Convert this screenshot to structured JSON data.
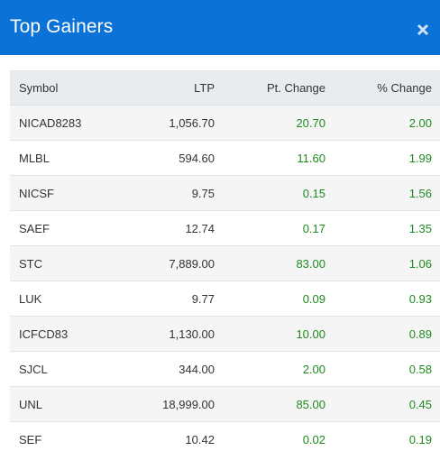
{
  "header": {
    "title": "Top Gainers",
    "close_icon": "close-icon"
  },
  "colors": {
    "header_bg": "#0b72d8",
    "positive": "#1e8a1e"
  },
  "table": {
    "columns": [
      "Symbol",
      "LTP",
      "Pt. Change",
      "% Change"
    ],
    "rows": [
      {
        "symbol": "NICAD8283",
        "ltp": "1,056.70",
        "pt_change": "20.70",
        "pct_change": "2.00"
      },
      {
        "symbol": "MLBL",
        "ltp": "594.60",
        "pt_change": "11.60",
        "pct_change": "1.99"
      },
      {
        "symbol": "NICSF",
        "ltp": "9.75",
        "pt_change": "0.15",
        "pct_change": "1.56"
      },
      {
        "symbol": "SAEF",
        "ltp": "12.74",
        "pt_change": "0.17",
        "pct_change": "1.35"
      },
      {
        "symbol": "STC",
        "ltp": "7,889.00",
        "pt_change": "83.00",
        "pct_change": "1.06"
      },
      {
        "symbol": "LUK",
        "ltp": "9.77",
        "pt_change": "0.09",
        "pct_change": "0.93"
      },
      {
        "symbol": "ICFCD83",
        "ltp": "1,130.00",
        "pt_change": "10.00",
        "pct_change": "0.89"
      },
      {
        "symbol": "SJCL",
        "ltp": "344.00",
        "pt_change": "2.00",
        "pct_change": "0.58"
      },
      {
        "symbol": "UNL",
        "ltp": "18,999.00",
        "pt_change": "85.00",
        "pct_change": "0.45"
      },
      {
        "symbol": "SEF",
        "ltp": "10.42",
        "pt_change": "0.02",
        "pct_change": "0.19"
      }
    ]
  }
}
